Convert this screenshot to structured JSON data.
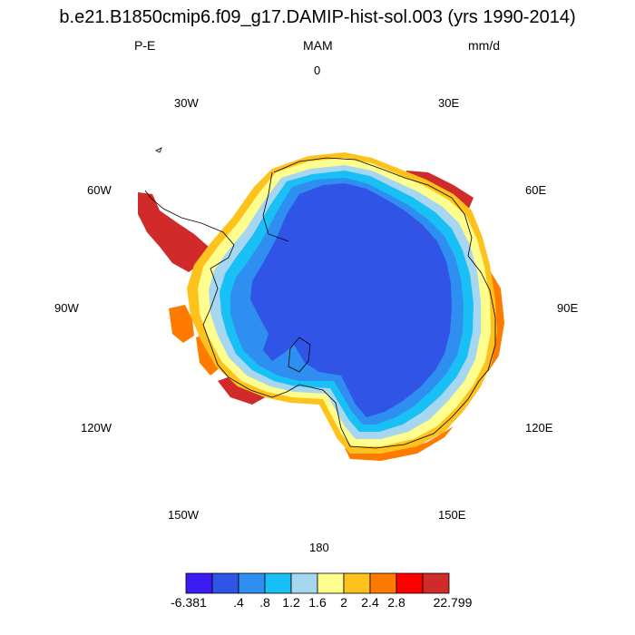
{
  "title": "b.e21.B1850cmip6.f09_g17.DAMIP-hist-sol.003 (yrs 1990-2014)",
  "left_label": "P-E",
  "center_label": "MAM",
  "right_label": "mm/d",
  "longitude_labels": {
    "lon_0": "0",
    "lon_30e": "30E",
    "lon_60e": "60E",
    "lon_90e": "90E",
    "lon_120e": "120E",
    "lon_150e": "150E",
    "lon_180": "180",
    "lon_150w": "150W",
    "lon_120w": "120W",
    "lon_90w": "90W",
    "lon_60w": "60W",
    "lon_30w": "30W"
  },
  "colorbar": {
    "colors": [
      "#3a1cf2",
      "#3055e6",
      "#2f8ff0",
      "#18c0f5",
      "#a7d7f0",
      "#fefe8e",
      "#fec21d",
      "#fe7b00",
      "#fe0000",
      "#d12a2a"
    ],
    "labels": [
      "-6.381",
      ".4",
      ".8",
      "1.2",
      "1.6",
      "2",
      "2.4",
      "2.8",
      "22.799"
    ]
  }
}
